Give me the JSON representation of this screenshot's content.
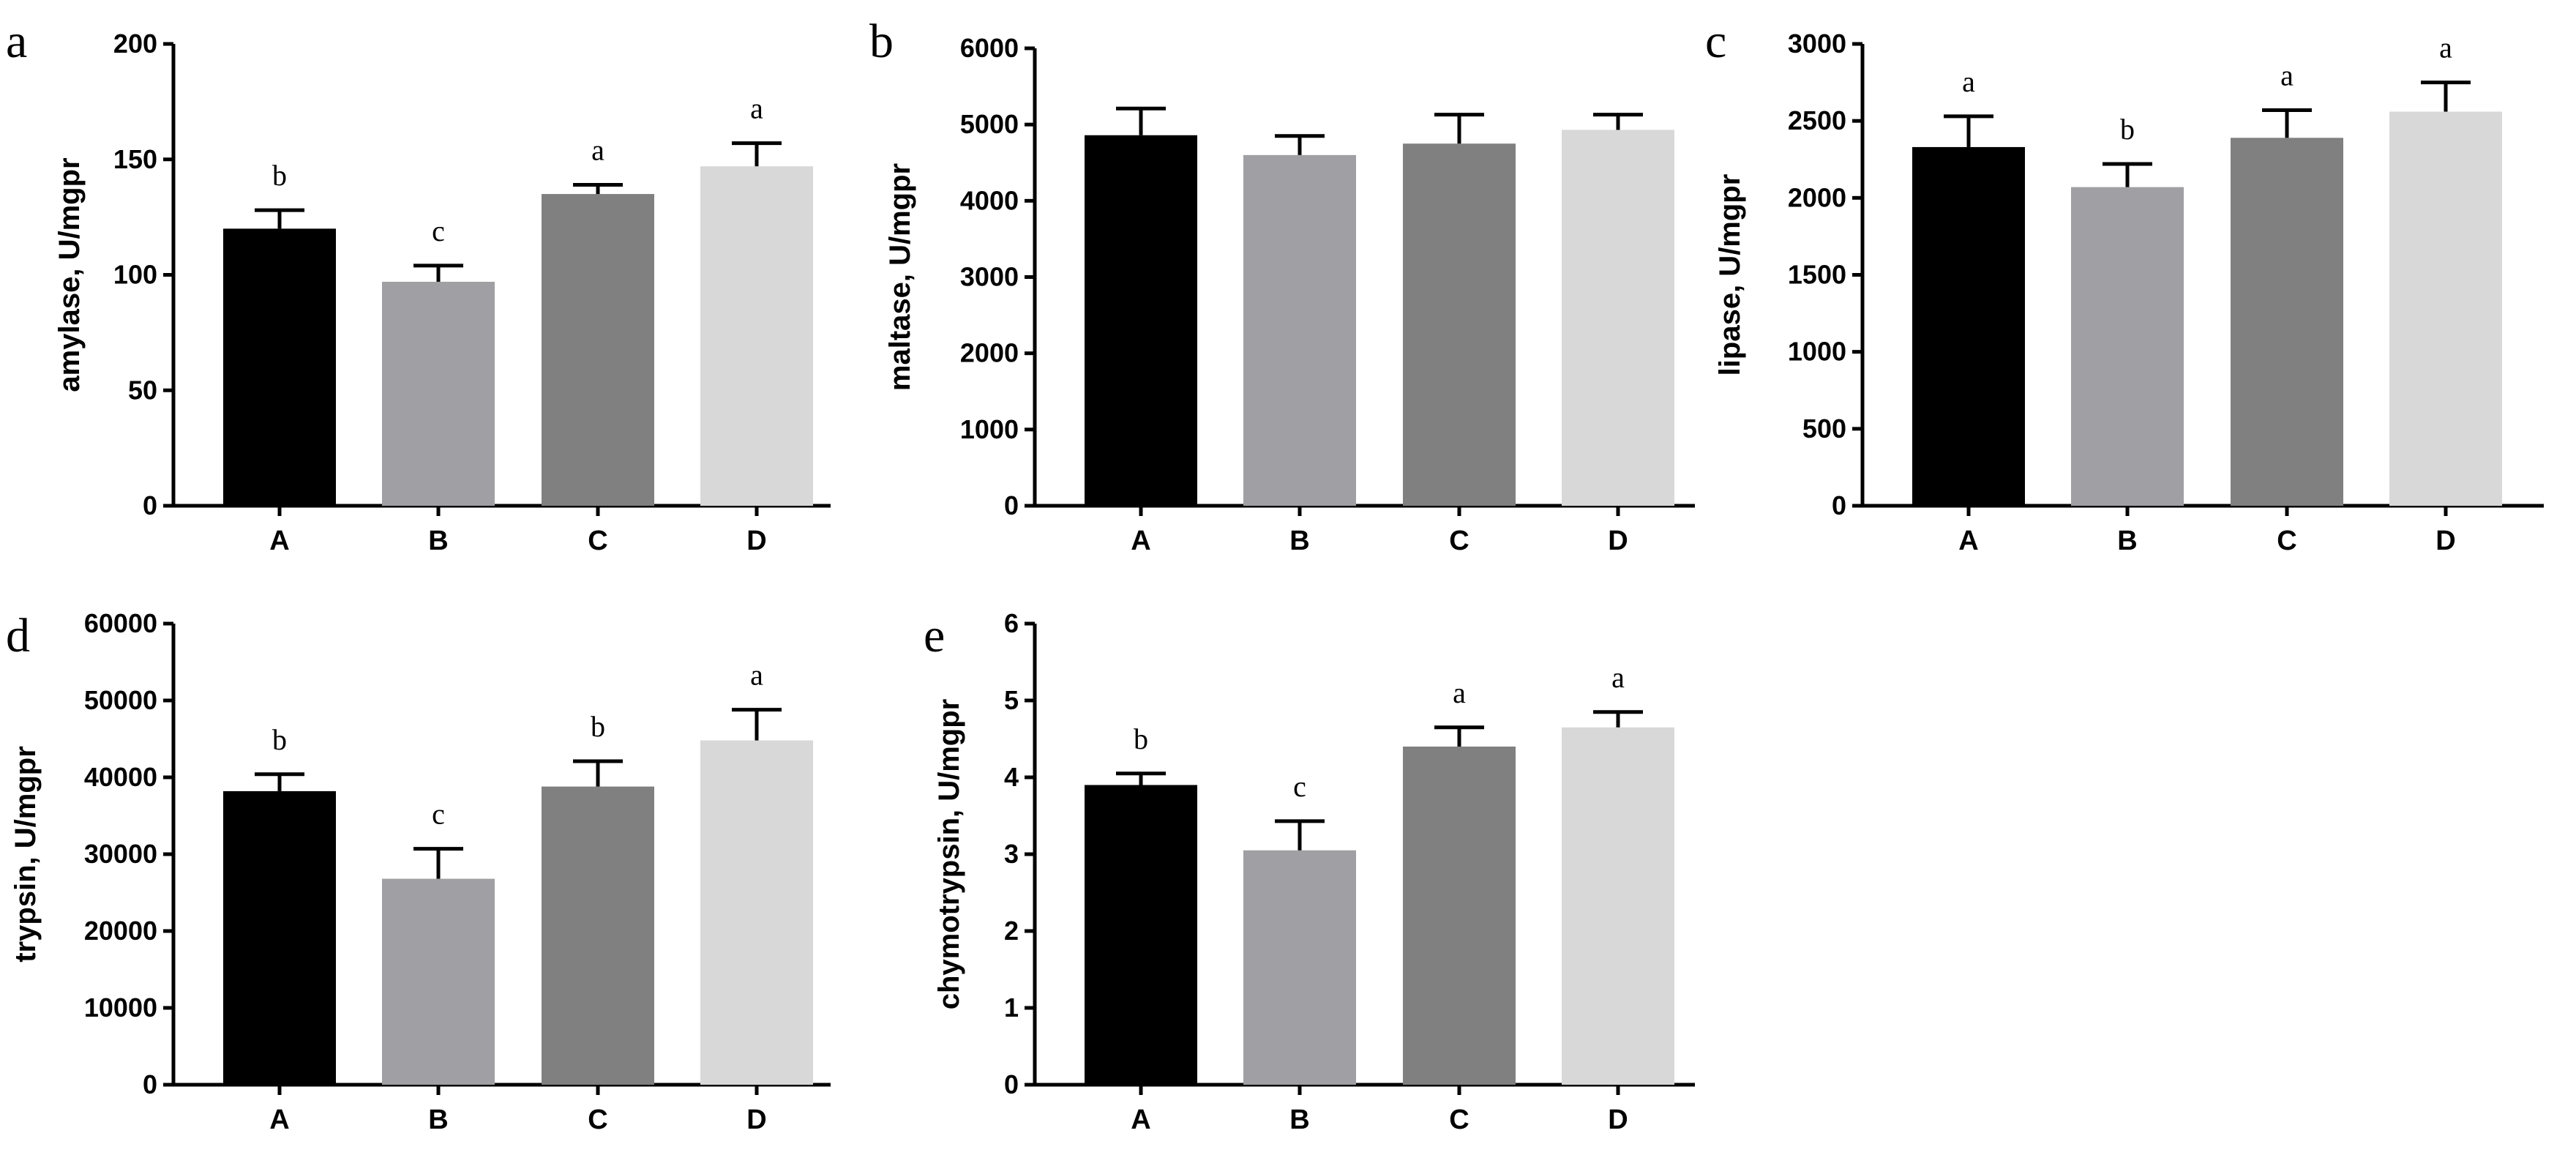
{
  "figure": {
    "bar_colors": [
      "#000000",
      "#a0a0a4",
      "#808080",
      "#d8d8d8"
    ]
  },
  "chart_data": [
    {
      "panel": "a",
      "type": "bar",
      "categories": [
        "A",
        "B",
        "C",
        "D"
      ],
      "values": [
        120,
        97,
        135,
        147
      ],
      "errors": [
        8,
        7,
        4,
        10
      ],
      "letters": [
        "b",
        "c",
        "a",
        "a"
      ],
      "ylabel": "amylase, U/mgpr",
      "ylim": [
        0,
        200
      ],
      "yticks": [
        0,
        50,
        100,
        150,
        200
      ],
      "ytick_labels": [
        "0",
        "50",
        "100",
        "150",
        "200"
      ]
    },
    {
      "panel": "b",
      "type": "bar",
      "categories": [
        "A",
        "B",
        "C",
        "D"
      ],
      "values": [
        4860,
        4600,
        4750,
        4930
      ],
      "errors": [
        350,
        250,
        380,
        200
      ],
      "letters": [
        "",
        "",
        "",
        ""
      ],
      "ylabel": "maltase, U/mgpr",
      "ylim": [
        0,
        6000
      ],
      "yticks": [
        0,
        1000,
        2000,
        3000,
        4000,
        5000,
        6000
      ],
      "ytick_labels": [
        "0",
        "1000",
        "2000",
        "3000",
        "4000",
        "5000",
        "6000"
      ]
    },
    {
      "panel": "c",
      "type": "bar",
      "categories": [
        "A",
        "B",
        "C",
        "D"
      ],
      "values": [
        2330,
        2070,
        2390,
        2560
      ],
      "errors": [
        200,
        150,
        180,
        190
      ],
      "letters": [
        "a",
        "b",
        "a",
        "a"
      ],
      "ylabel": "lipase, U/mgpr",
      "ylim": [
        0,
        3000
      ],
      "yticks": [
        0,
        500,
        1000,
        1500,
        2000,
        2500,
        3000
      ],
      "ytick_labels": [
        "0",
        "500",
        "1000",
        "1500",
        "2000",
        "2500",
        "3000"
      ]
    },
    {
      "panel": "d",
      "type": "bar",
      "categories": [
        "A",
        "B",
        "C",
        "D"
      ],
      "values": [
        38200,
        26800,
        38800,
        44800
      ],
      "errors": [
        2200,
        3900,
        3300,
        4000
      ],
      "letters": [
        "b",
        "c",
        "b",
        "a"
      ],
      "ylabel": "trypsin, U/mgpr",
      "ylim": [
        0,
        60000
      ],
      "yticks": [
        0,
        10000,
        20000,
        30000,
        40000,
        50000,
        60000
      ],
      "ytick_labels": [
        "0",
        "10000",
        "20000",
        "30000",
        "40000",
        "50000",
        "60000"
      ]
    },
    {
      "panel": "e",
      "type": "bar",
      "categories": [
        "A",
        "B",
        "C",
        "D"
      ],
      "values": [
        3.9,
        3.05,
        4.4,
        4.65
      ],
      "errors": [
        0.15,
        0.38,
        0.25,
        0.2
      ],
      "letters": [
        "b",
        "c",
        "a",
        "a"
      ],
      "ylabel": "chymotrypsin, U/mgpr",
      "ylim": [
        0,
        6
      ],
      "yticks": [
        0,
        1,
        2,
        3,
        4,
        5,
        6
      ],
      "ytick_labels": [
        "0",
        "1",
        "2",
        "3",
        "4",
        "5",
        "6"
      ]
    }
  ]
}
